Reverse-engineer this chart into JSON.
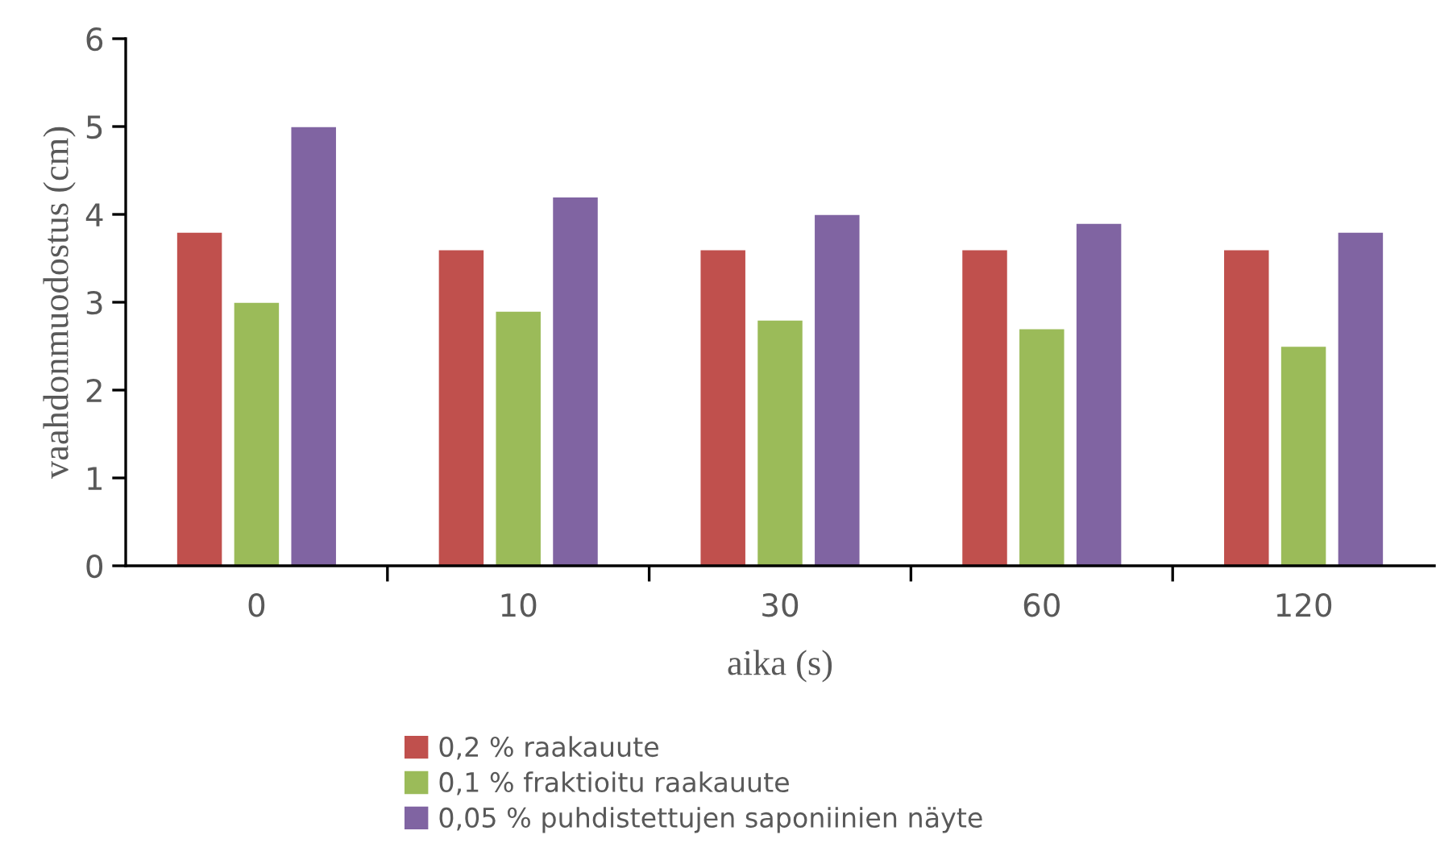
{
  "chart_data": {
    "type": "bar",
    "xlabel": "aika (s)",
    "ylabel": "vaahdonmuodostus (cm)",
    "categories": [
      "0",
      "10",
      "30",
      "60",
      "120"
    ],
    "series": [
      {
        "name": "0,2 % raakauute",
        "color": "#c0504d",
        "values": [
          3.8,
          3.6,
          3.6,
          3.6,
          3.6
        ]
      },
      {
        "name": "0,1 % fraktioitu raakauute",
        "color": "#9bbb59",
        "values": [
          3.0,
          2.9,
          2.8,
          2.7,
          2.5
        ]
      },
      {
        "name": "0,05 % puhdistettujen saponiinien näyte",
        "color": "#8064a2",
        "values": [
          5.0,
          4.2,
          4.0,
          3.9,
          3.8
        ]
      }
    ],
    "ylim": [
      0,
      6
    ],
    "yticks": [
      0,
      1,
      2,
      3,
      4,
      5,
      6
    ],
    "grid": false,
    "legend": "bottom"
  }
}
